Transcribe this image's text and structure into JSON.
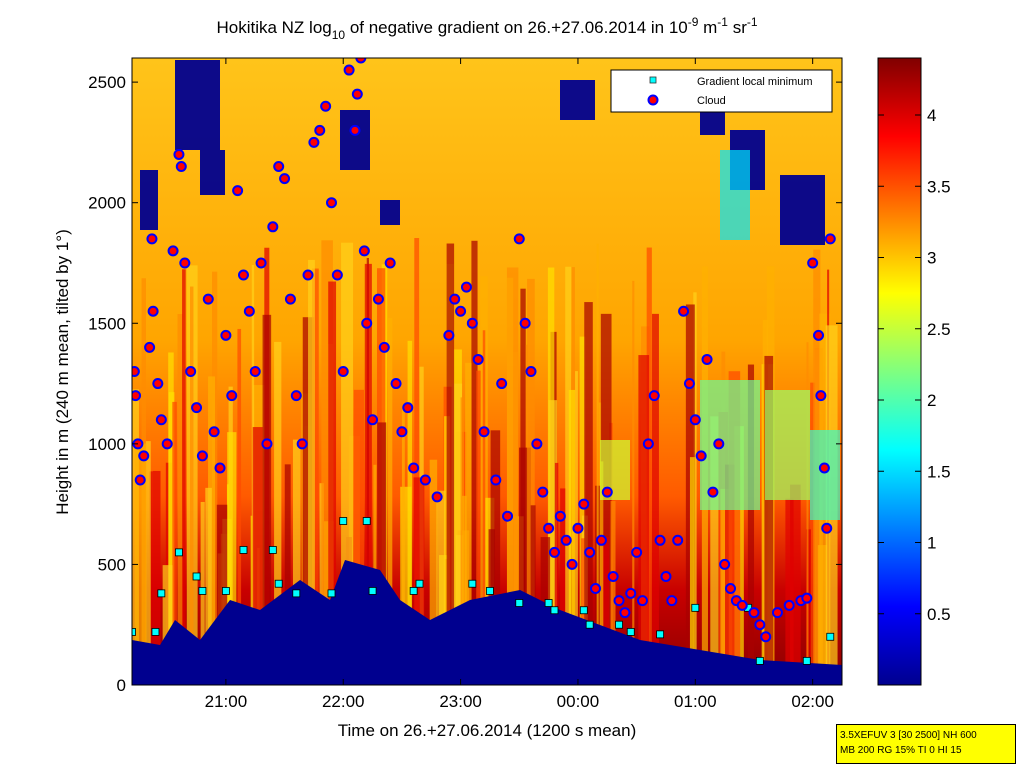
{
  "chart_data": {
    "type": "heatmap",
    "title": {
      "prefix": "Hokitika NZ log",
      "log_base": "10",
      "middle": " of negative gradient on 26.+27.06.2014 in 10",
      "exp1": "-9",
      "unit1": " m",
      "exp2": "-1",
      "unit2": " sr",
      "exp3": "-1"
    },
    "xlabel": "Time on 26.+27.06.2014 (1200 s mean)",
    "ylabel": "Height in m (240 m mean, tilted by 1°)",
    "x_ticks": [
      "21:00",
      "22:00",
      "23:00",
      "00:00",
      "01:00",
      "02:00"
    ],
    "x_range_hours": [
      20.2,
      26.25
    ],
    "y_ticks": [
      0,
      500,
      1000,
      1500,
      2000,
      2500
    ],
    "y_range": [
      0,
      2600
    ],
    "colorbar": {
      "ticks": [
        "0.5",
        "1",
        "1.5",
        "2",
        "2.5",
        "3",
        "3.5",
        "4"
      ],
      "range": [
        0,
        4.4
      ],
      "colormap": "jet"
    },
    "legend": {
      "position": "top-right",
      "entries": [
        {
          "label": "Gradient local minimum",
          "marker": "square",
          "color": "#00ffff"
        },
        {
          "label": "Cloud",
          "marker": "circle",
          "color": "#ff0000"
        }
      ]
    },
    "gradient_local_minimum": [
      {
        "t": 20.2,
        "h": 220
      },
      {
        "t": 20.4,
        "h": 220
      },
      {
        "t": 20.45,
        "h": 380
      },
      {
        "t": 20.6,
        "h": 550
      },
      {
        "t": 20.75,
        "h": 450
      },
      {
        "t": 20.8,
        "h": 390
      },
      {
        "t": 21.0,
        "h": 390
      },
      {
        "t": 21.15,
        "h": 560
      },
      {
        "t": 21.4,
        "h": 560
      },
      {
        "t": 21.45,
        "h": 420
      },
      {
        "t": 21.6,
        "h": 380
      },
      {
        "t": 21.9,
        "h": 380
      },
      {
        "t": 22.0,
        "h": 680
      },
      {
        "t": 22.2,
        "h": 680
      },
      {
        "t": 22.25,
        "h": 390
      },
      {
        "t": 22.6,
        "h": 390
      },
      {
        "t": 22.65,
        "h": 420
      },
      {
        "t": 23.1,
        "h": 420
      },
      {
        "t": 23.25,
        "h": 390
      },
      {
        "t": 23.5,
        "h": 340
      },
      {
        "t": 23.75,
        "h": 340
      },
      {
        "t": 23.8,
        "h": 310
      },
      {
        "t": 24.05,
        "h": 310
      },
      {
        "t": 24.1,
        "h": 250
      },
      {
        "t": 24.35,
        "h": 250
      },
      {
        "t": 24.45,
        "h": 220
      },
      {
        "t": 24.7,
        "h": 210
      },
      {
        "t": 25.0,
        "h": 320
      },
      {
        "t": 25.45,
        "h": 320
      },
      {
        "t": 25.55,
        "h": 100
      },
      {
        "t": 25.95,
        "h": 100
      },
      {
        "t": 26.15,
        "h": 200
      }
    ],
    "cloud": [
      {
        "t": 20.22,
        "h": 1300
      },
      {
        "t": 20.23,
        "h": 1200
      },
      {
        "t": 20.25,
        "h": 1000
      },
      {
        "t": 20.27,
        "h": 850
      },
      {
        "t": 20.3,
        "h": 950
      },
      {
        "t": 20.35,
        "h": 1400
      },
      {
        "t": 20.37,
        "h": 1850
      },
      {
        "t": 20.38,
        "h": 1550
      },
      {
        "t": 20.42,
        "h": 1250
      },
      {
        "t": 20.45,
        "h": 1100
      },
      {
        "t": 20.5,
        "h": 1000
      },
      {
        "t": 20.55,
        "h": 1800
      },
      {
        "t": 20.6,
        "h": 2200
      },
      {
        "t": 20.62,
        "h": 2150
      },
      {
        "t": 20.65,
        "h": 1750
      },
      {
        "t": 20.7,
        "h": 1300
      },
      {
        "t": 20.75,
        "h": 1150
      },
      {
        "t": 20.8,
        "h": 950
      },
      {
        "t": 20.85,
        "h": 1600
      },
      {
        "t": 20.9,
        "h": 1050
      },
      {
        "t": 20.95,
        "h": 900
      },
      {
        "t": 21.0,
        "h": 1450
      },
      {
        "t": 21.05,
        "h": 1200
      },
      {
        "t": 21.1,
        "h": 2050
      },
      {
        "t": 21.15,
        "h": 1700
      },
      {
        "t": 21.2,
        "h": 1550
      },
      {
        "t": 21.25,
        "h": 1300
      },
      {
        "t": 21.3,
        "h": 1750
      },
      {
        "t": 21.35,
        "h": 1000
      },
      {
        "t": 21.4,
        "h": 1900
      },
      {
        "t": 21.45,
        "h": 2150
      },
      {
        "t": 21.5,
        "h": 2100
      },
      {
        "t": 21.55,
        "h": 1600
      },
      {
        "t": 21.6,
        "h": 1200
      },
      {
        "t": 21.65,
        "h": 1000
      },
      {
        "t": 21.7,
        "h": 1700
      },
      {
        "t": 21.75,
        "h": 2250
      },
      {
        "t": 21.8,
        "h": 2300
      },
      {
        "t": 21.85,
        "h": 2400
      },
      {
        "t": 21.9,
        "h": 2000
      },
      {
        "t": 21.95,
        "h": 1700
      },
      {
        "t": 22.0,
        "h": 1300
      },
      {
        "t": 22.05,
        "h": 2550
      },
      {
        "t": 22.1,
        "h": 2300
      },
      {
        "t": 22.12,
        "h": 2450
      },
      {
        "t": 22.15,
        "h": 2600
      },
      {
        "t": 22.18,
        "h": 1800
      },
      {
        "t": 22.2,
        "h": 1500
      },
      {
        "t": 22.25,
        "h": 1100
      },
      {
        "t": 22.3,
        "h": 1600
      },
      {
        "t": 22.35,
        "h": 1400
      },
      {
        "t": 22.4,
        "h": 1750
      },
      {
        "t": 22.45,
        "h": 1250
      },
      {
        "t": 22.5,
        "h": 1050
      },
      {
        "t": 22.55,
        "h": 1150
      },
      {
        "t": 22.6,
        "h": 900
      },
      {
        "t": 22.7,
        "h": 850
      },
      {
        "t": 22.8,
        "h": 780
      },
      {
        "t": 22.9,
        "h": 1450
      },
      {
        "t": 22.95,
        "h": 1600
      },
      {
        "t": 23.0,
        "h": 1550
      },
      {
        "t": 23.05,
        "h": 1650
      },
      {
        "t": 23.1,
        "h": 1500
      },
      {
        "t": 23.15,
        "h": 1350
      },
      {
        "t": 23.2,
        "h": 1050
      },
      {
        "t": 23.3,
        "h": 850
      },
      {
        "t": 23.35,
        "h": 1250
      },
      {
        "t": 23.4,
        "h": 700
      },
      {
        "t": 23.5,
        "h": 1850
      },
      {
        "t": 23.55,
        "h": 1500
      },
      {
        "t": 23.6,
        "h": 1300
      },
      {
        "t": 23.65,
        "h": 1000
      },
      {
        "t": 23.7,
        "h": 800
      },
      {
        "t": 23.75,
        "h": 650
      },
      {
        "t": 23.8,
        "h": 550
      },
      {
        "t": 23.85,
        "h": 700
      },
      {
        "t": 23.9,
        "h": 600
      },
      {
        "t": 23.95,
        "h": 500
      },
      {
        "t": 24.0,
        "h": 650
      },
      {
        "t": 24.05,
        "h": 750
      },
      {
        "t": 24.1,
        "h": 550
      },
      {
        "t": 24.15,
        "h": 400
      },
      {
        "t": 24.2,
        "h": 600
      },
      {
        "t": 24.25,
        "h": 800
      },
      {
        "t": 24.3,
        "h": 450
      },
      {
        "t": 24.35,
        "h": 350
      },
      {
        "t": 24.4,
        "h": 300
      },
      {
        "t": 24.45,
        "h": 380
      },
      {
        "t": 24.5,
        "h": 550
      },
      {
        "t": 24.55,
        "h": 350
      },
      {
        "t": 24.6,
        "h": 1000
      },
      {
        "t": 24.65,
        "h": 1200
      },
      {
        "t": 24.7,
        "h": 600
      },
      {
        "t": 24.75,
        "h": 450
      },
      {
        "t": 24.8,
        "h": 350
      },
      {
        "t": 24.85,
        "h": 600
      },
      {
        "t": 24.9,
        "h": 1550
      },
      {
        "t": 24.95,
        "h": 1250
      },
      {
        "t": 25.0,
        "h": 1100
      },
      {
        "t": 25.05,
        "h": 950
      },
      {
        "t": 25.1,
        "h": 1350
      },
      {
        "t": 25.15,
        "h": 800
      },
      {
        "t": 25.2,
        "h": 1000
      },
      {
        "t": 25.25,
        "h": 500
      },
      {
        "t": 25.3,
        "h": 400
      },
      {
        "t": 25.35,
        "h": 350
      },
      {
        "t": 25.4,
        "h": 330
      },
      {
        "t": 25.5,
        "h": 300
      },
      {
        "t": 25.55,
        "h": 250
      },
      {
        "t": 25.6,
        "h": 200
      },
      {
        "t": 25.7,
        "h": 300
      },
      {
        "t": 25.8,
        "h": 330
      },
      {
        "t": 25.9,
        "h": 350
      },
      {
        "t": 25.95,
        "h": 360
      },
      {
        "t": 26.0,
        "h": 1750
      },
      {
        "t": 26.05,
        "h": 1450
      },
      {
        "t": 26.07,
        "h": 1200
      },
      {
        "t": 26.1,
        "h": 900
      },
      {
        "t": 26.12,
        "h": 650
      },
      {
        "t": 26.15,
        "h": 1850
      }
    ]
  },
  "stamp": {
    "line1": "3.5XEFUV 3 [30 2500] NH 600",
    "line2": "MB 200 RG 15% TI 0 HI 15"
  }
}
